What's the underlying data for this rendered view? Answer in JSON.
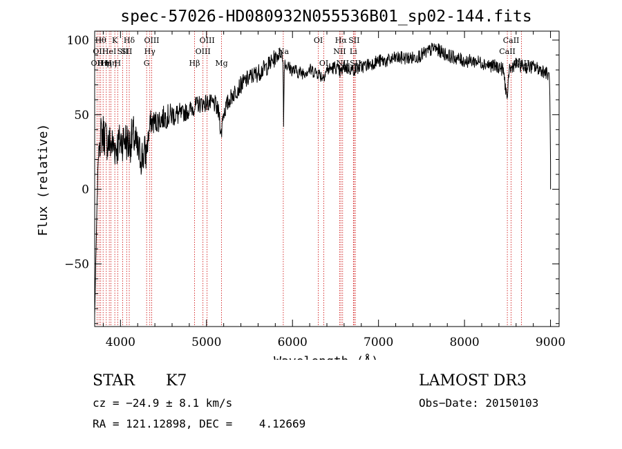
{
  "chart_data": {
    "type": "line",
    "title": "spec-57026-HD080932N055536B01_sp02-144.fits",
    "xlabel": "Wavelength (Å)",
    "ylabel": "Flux (relative)",
    "xlim": [
      3700,
      9100
    ],
    "ylim": [
      -92,
      106
    ],
    "x_ticks": [
      4000,
      5000,
      6000,
      7000,
      8000,
      9000
    ],
    "x_tick_labels": [
      "4000",
      "5000",
      "6000",
      "7000",
      "8000",
      "9000"
    ],
    "y_ticks": [
      100,
      50,
      0,
      -50
    ],
    "y_tick_labels": [
      "100",
      "50",
      "0",
      "−50"
    ],
    "grid": false,
    "series": [
      {
        "name": "spectrum",
        "anchors_x": [
          3700,
          3720,
          3740,
          3760,
          3800,
          3850,
          3900,
          3950,
          4000,
          4050,
          4100,
          4150,
          4200,
          4250,
          4300,
          4350,
          4400,
          4500,
          4600,
          4700,
          4800,
          4900,
          5000,
          5100,
          5150,
          5170,
          5190,
          5250,
          5300,
          5400,
          5500,
          5600,
          5700,
          5800,
          5870,
          5890,
          5896,
          5905,
          5950,
          6000,
          6100,
          6200,
          6300,
          6350,
          6400,
          6500,
          6560,
          6600,
          6700,
          6800,
          6900,
          7000,
          7100,
          7200,
          7300,
          7400,
          7500,
          7600,
          7650,
          7700,
          7800,
          7900,
          8000,
          8100,
          8200,
          8300,
          8400,
          8450,
          8498,
          8520,
          8540,
          8560,
          8600,
          8650,
          8700,
          8800,
          8900,
          8950,
          8990,
          9000,
          9010
        ],
        "anchors_y": [
          -85,
          -30,
          20,
          35,
          38,
          32,
          30,
          28,
          32,
          34,
          30,
          36,
          25,
          22,
          25,
          45,
          45,
          48,
          50,
          50,
          53,
          57,
          58,
          57,
          50,
          35,
          50,
          58,
          63,
          70,
          75,
          78,
          82,
          88,
          92,
          85,
          42,
          85,
          82,
          80,
          78,
          80,
          78,
          75,
          80,
          82,
          78,
          82,
          80,
          82,
          84,
          86,
          86,
          88,
          88,
          88,
          90,
          93,
          95,
          93,
          90,
          88,
          86,
          86,
          85,
          83,
          82,
          80,
          60,
          82,
          80,
          83,
          84,
          83,
          82,
          82,
          80,
          78,
          75,
          17,
          0
        ]
      }
    ],
    "spectral_lines": [
      {
        "wl": 3727,
        "label": "OII",
        "row": 3
      },
      {
        "wl": 3750,
        "label": "OII",
        "row": 2
      },
      {
        "wl": 3770,
        "label": "Hθ",
        "row": 1
      },
      {
        "wl": 3798,
        "label": "Hη",
        "row": 3
      },
      {
        "wl": 3835,
        "label": "Hη",
        "row": 3
      },
      {
        "wl": 3870,
        "label": "HeI",
        "row": 2
      },
      {
        "wl": 3889,
        "label": "Hη",
        "row": 3
      },
      {
        "wl": 3934,
        "label": "K",
        "row": 1
      },
      {
        "wl": 3968,
        "label": "H",
        "row": 3
      },
      {
        "wl": 4026,
        "label": "SII",
        "row": 2
      },
      {
        "wl": 4072,
        "label": "SII",
        "row": 2
      },
      {
        "wl": 4102,
        "label": "Hδ",
        "row": 1
      },
      {
        "wl": 4304,
        "label": "G",
        "row": 3
      },
      {
        "wl": 4341,
        "label": "Hγ",
        "row": 2
      },
      {
        "wl": 4363,
        "label": "OIII",
        "row": 1
      },
      {
        "wl": 4861,
        "label": "Hβ",
        "row": 3
      },
      {
        "wl": 4959,
        "label": "OIII",
        "row": 2
      },
      {
        "wl": 5007,
        "label": "OIII",
        "row": 1
      },
      {
        "wl": 5175,
        "label": "Mg",
        "row": 3
      },
      {
        "wl": 5893,
        "label": "Na",
        "row": 2
      },
      {
        "wl": 6300,
        "label": "OI",
        "row": 1
      },
      {
        "wl": 6364,
        "label": "OI",
        "row": 3
      },
      {
        "wl": 6548,
        "label": "NII",
        "row": 2
      },
      {
        "wl": 6563,
        "label": "Hα",
        "row": 1
      },
      {
        "wl": 6583,
        "label": "NII",
        "row": 3
      },
      {
        "wl": 6708,
        "label": "Li",
        "row": 2
      },
      {
        "wl": 6716,
        "label": "SII",
        "row": 1
      },
      {
        "wl": 6731,
        "label": "SII",
        "row": 3
      },
      {
        "wl": 8498,
        "label": "CaII",
        "row": 2
      },
      {
        "wl": 8542,
        "label": "CaII",
        "row": 1
      },
      {
        "wl": 8662,
        "label": "CaII",
        "row": 3
      }
    ]
  },
  "info": {
    "class": "STAR",
    "subclass": "K7",
    "survey": "LAMOST DR3",
    "cz": "cz = −24.9 ± 8.1 km/s",
    "obs_date": "Obs−Date: 20150103",
    "radec": "RA = 121.12898, DEC =    4.12669"
  },
  "colors": {
    "axes": "#000000",
    "spectrum": "#000000",
    "line_markers": "#cc0000",
    "background": "#ffffff"
  }
}
